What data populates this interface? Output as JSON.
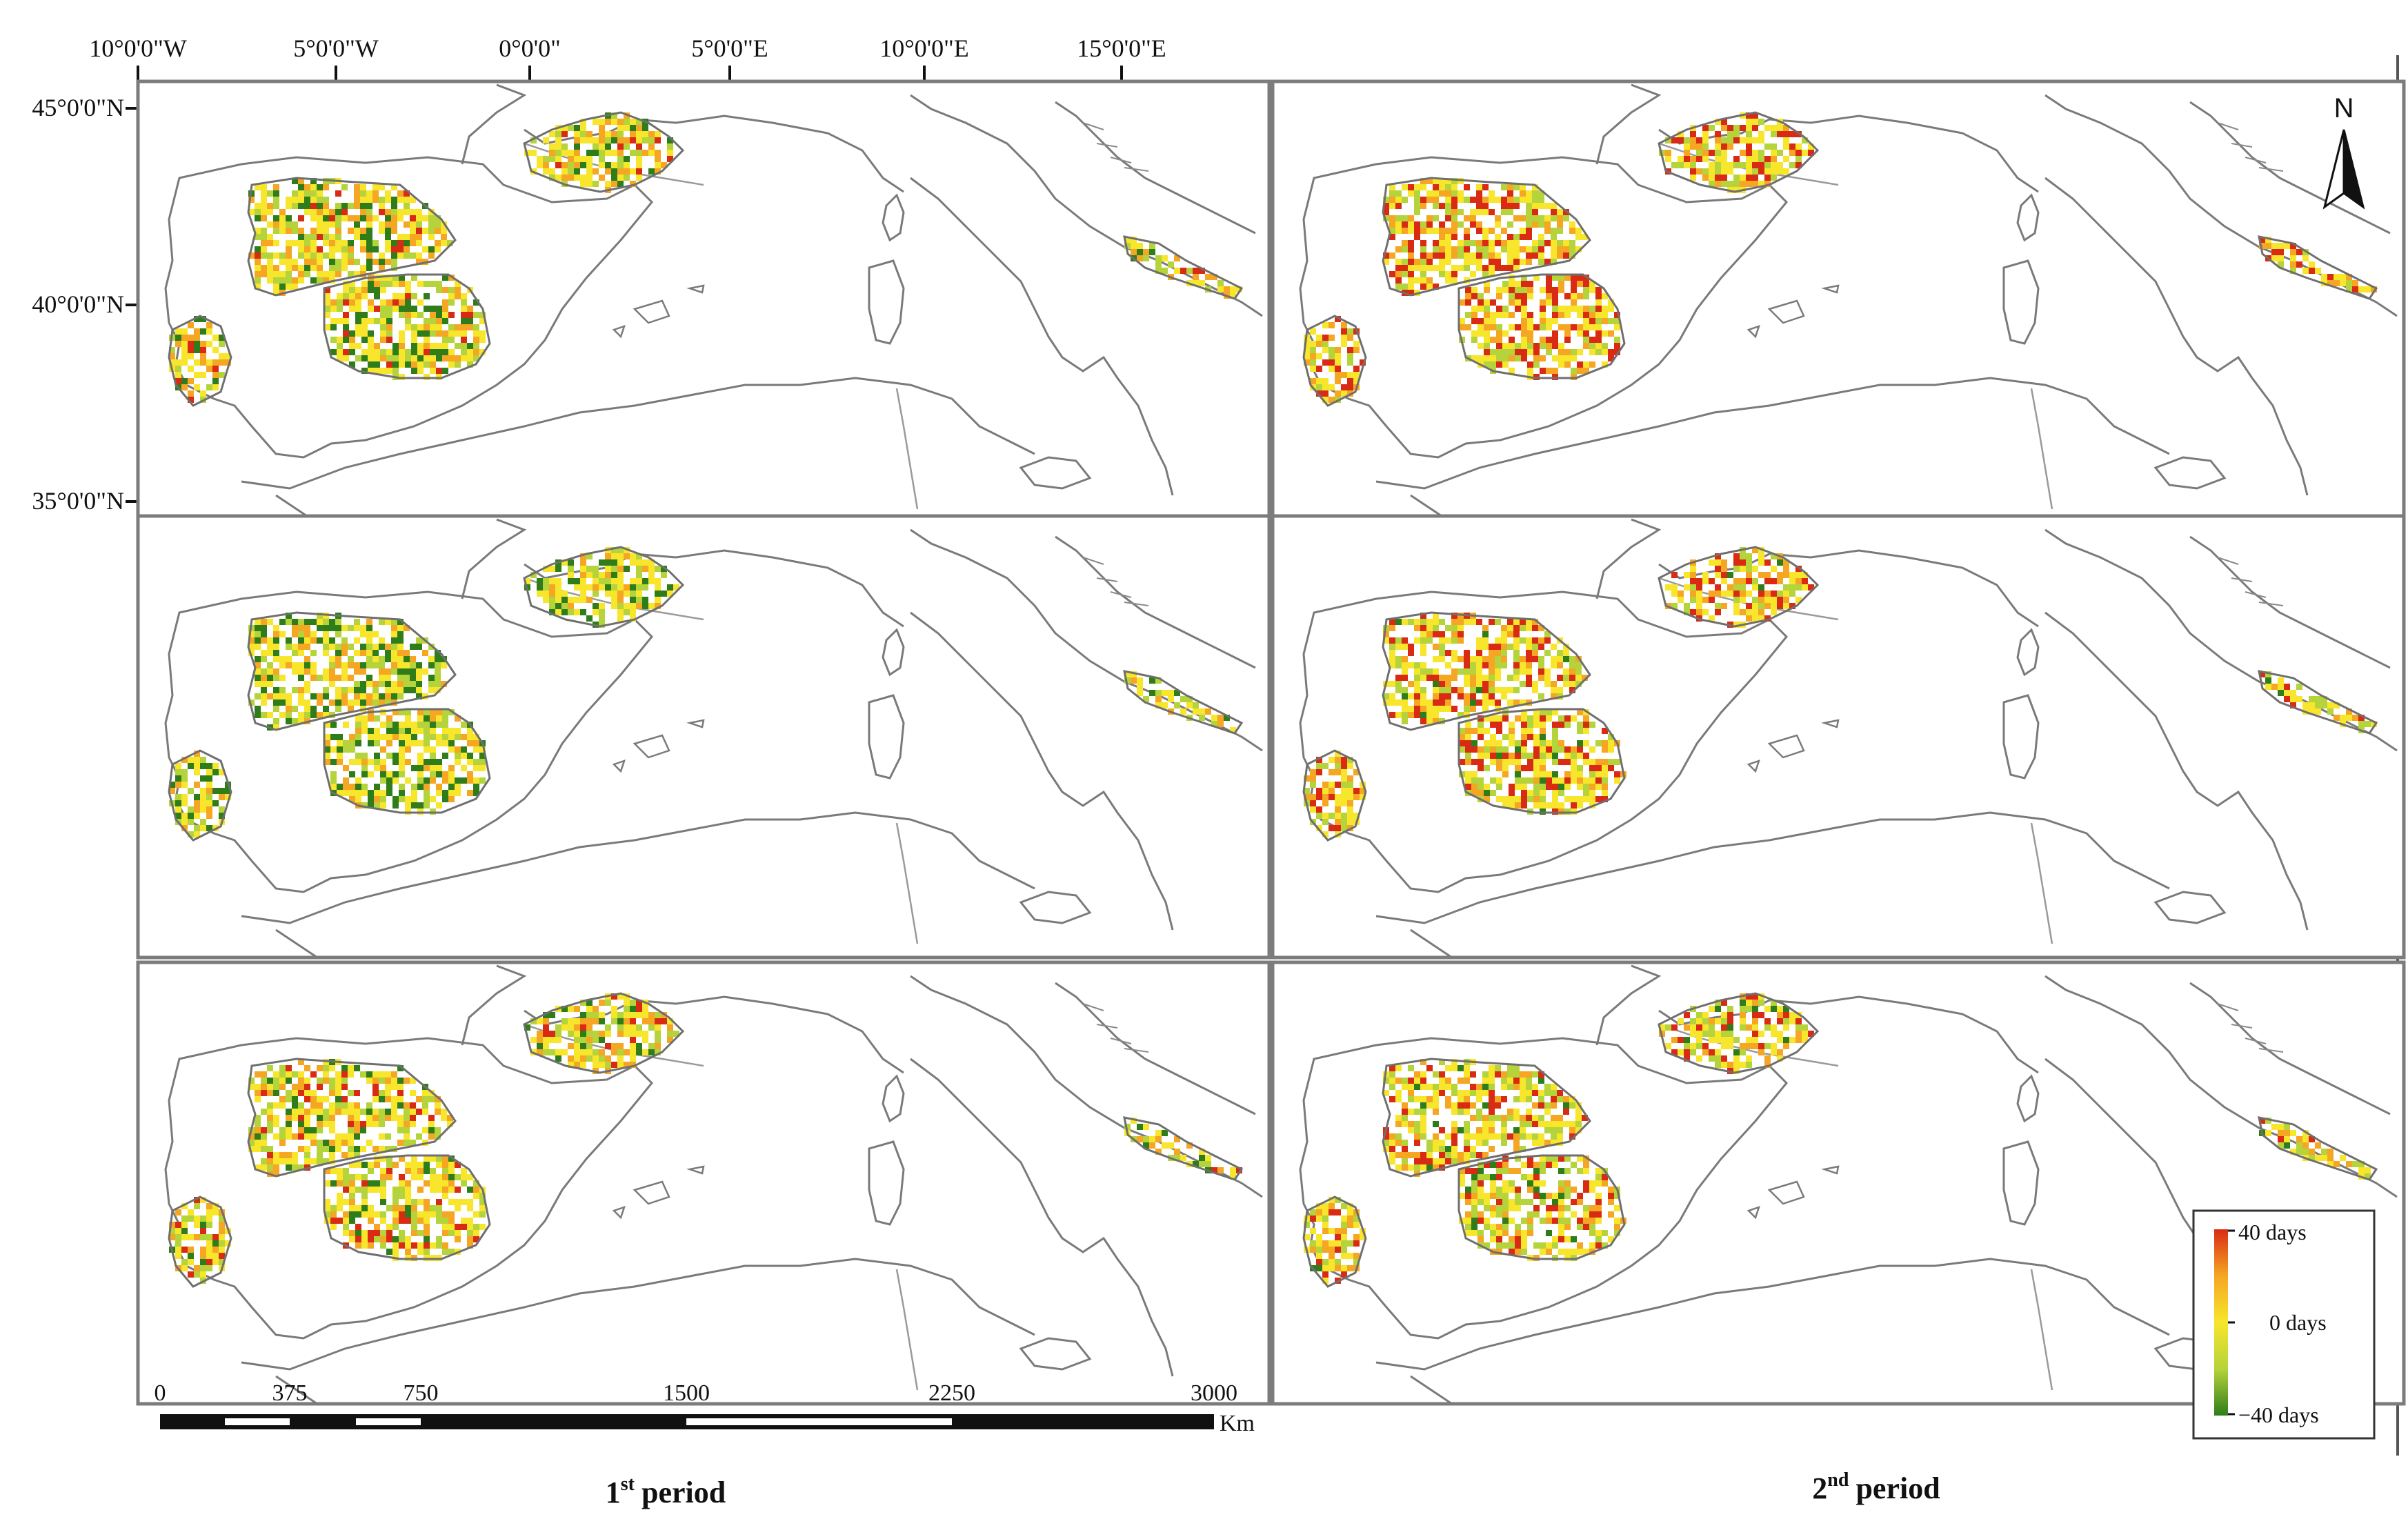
{
  "axes": {
    "lon_ticks": [
      "10°0'0\"W",
      "5°0'0\"W",
      "0°0'0\"",
      "5°0'0\"E",
      "10°0'0\"E",
      "15°0'0\"E"
    ],
    "lat_ticks": [
      "45°0'0\"N",
      "40°0'0\"N",
      "35°0'0\"N"
    ]
  },
  "periods": {
    "first": {
      "sup": "st",
      "word": "period",
      "num": "1"
    },
    "second": {
      "sup": "nd",
      "word": "period",
      "num": "2"
    }
  },
  "legend": {
    "top": "40 days",
    "mid": "0 days",
    "bottom": "−40 days",
    "colors": [
      "#d92b14",
      "#f5a623",
      "#f7e62b",
      "#b5d33a",
      "#2e7d1a"
    ]
  },
  "scale_bar": {
    "labels": [
      "0",
      "375",
      "750",
      "1500",
      "2250",
      "3000"
    ],
    "unit": "Km"
  },
  "north_arrow": {
    "label": "N",
    "icon": "north-arrow-icon"
  },
  "panels": [
    {
      "row": 1,
      "col": 1,
      "seed": 11,
      "bias": -0.05
    },
    {
      "row": 1,
      "col": 2,
      "seed": 23,
      "bias": 0.35
    },
    {
      "row": 2,
      "col": 1,
      "seed": 37,
      "bias": -0.2
    },
    {
      "row": 2,
      "col": 2,
      "seed": 41,
      "bias": 0.2
    },
    {
      "row": 3,
      "col": 1,
      "seed": 53,
      "bias": 0.05
    },
    {
      "row": 3,
      "col": 2,
      "seed": 67,
      "bias": 0.15
    }
  ]
}
